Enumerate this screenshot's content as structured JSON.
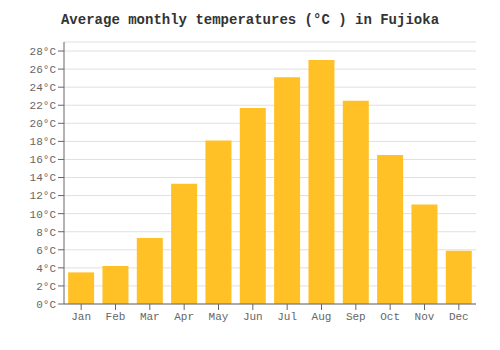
{
  "chart_data": {
    "type": "bar",
    "title": "Average monthly temperatures (°C ) in Fujioka",
    "categories": [
      "Jan",
      "Feb",
      "Mar",
      "Apr",
      "May",
      "Jun",
      "Jul",
      "Aug",
      "Sep",
      "Oct",
      "Nov",
      "Dec"
    ],
    "values": [
      3.5,
      4.2,
      7.3,
      13.3,
      18.1,
      21.7,
      25.1,
      27.0,
      22.5,
      16.5,
      11.0,
      5.9
    ],
    "color": "#FFC125",
    "ylim": [
      0,
      29
    ],
    "yticks": [
      {
        "value": 0,
        "label": "0°C"
      },
      {
        "value": 2,
        "label": "2°C"
      },
      {
        "value": 4,
        "label": "4°C"
      },
      {
        "value": 6,
        "label": "6°C"
      },
      {
        "value": 8,
        "label": "8°C"
      },
      {
        "value": 10,
        "label": "10°C"
      },
      {
        "value": 12,
        "label": "12°C"
      },
      {
        "value": 14,
        "label": "14°C"
      },
      {
        "value": 16,
        "label": "16°C"
      },
      {
        "value": 18,
        "label": "18°C"
      },
      {
        "value": 20,
        "label": "20°C"
      },
      {
        "value": 22,
        "label": "22°C"
      },
      {
        "value": 24,
        "label": "24°C"
      },
      {
        "value": 26,
        "label": "26°C"
      },
      {
        "value": 28,
        "label": "28°C"
      }
    ],
    "grid": true
  }
}
